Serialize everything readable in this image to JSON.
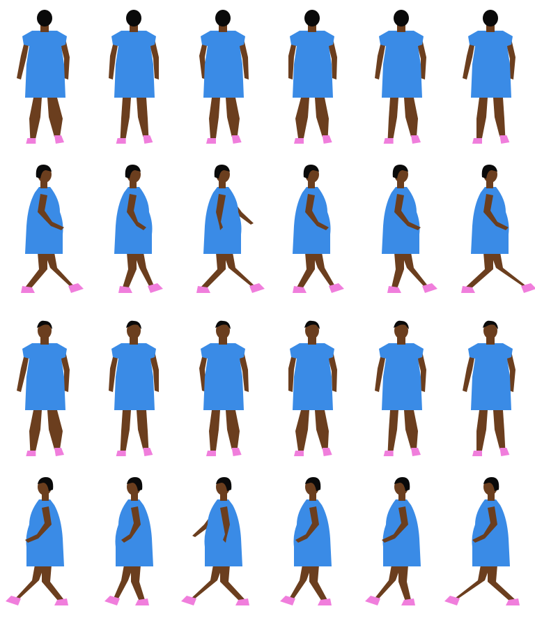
{
  "sprite_sheet": {
    "columns": 6,
    "rows": [
      {
        "direction": "back",
        "label": "walk-up"
      },
      {
        "direction": "right",
        "label": "walk-right"
      },
      {
        "direction": "front",
        "label": "walk-down"
      },
      {
        "direction": "left",
        "label": "walk-left"
      }
    ],
    "colors": {
      "skin": "#6B3E1E",
      "dress": "#3A8BE6",
      "hair": "#0A0A0A",
      "shoes": "#F07EDC",
      "background": "#FFFFFF"
    }
  }
}
